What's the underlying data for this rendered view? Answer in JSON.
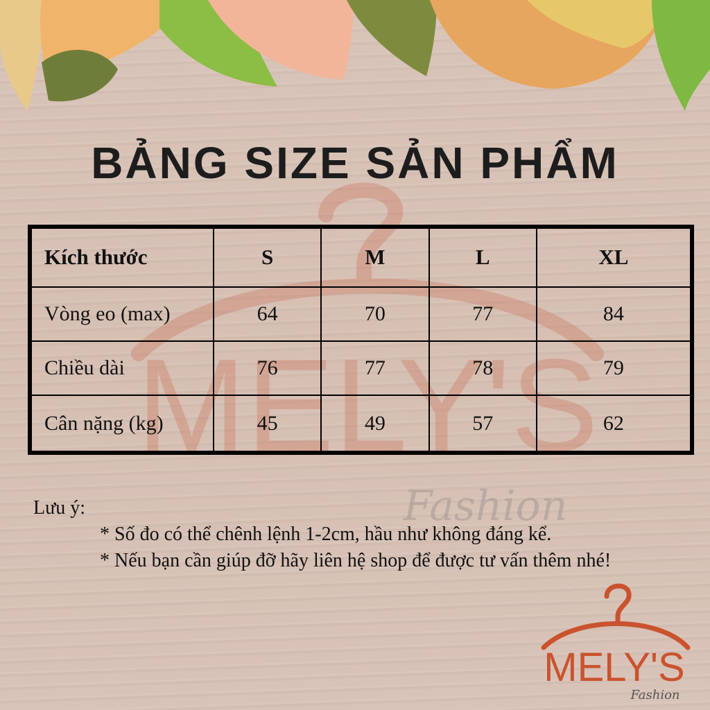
{
  "title": "BẢNG SIZE SẢN PHẨM",
  "table": {
    "headers": [
      "Kích thước",
      "S",
      "M",
      "L",
      "XL"
    ],
    "rows": [
      {
        "label": "Vòng eo (max)",
        "values": [
          "64",
          "70",
          "77",
          "84"
        ]
      },
      {
        "label": "Chiều dài",
        "values": [
          "76",
          "77",
          "78",
          "79"
        ]
      },
      {
        "label": "Cân nặng (kg)",
        "values": [
          "45",
          "49",
          "57",
          "62"
        ]
      }
    ]
  },
  "notes": {
    "label": "Lưu ý:",
    "items": [
      "* Số đo có thể chênh lệnh 1-2cm, hầu như không đáng kể.",
      "* Nếu bạn cần giúp đỡ hãy liên hệ shop để được tư vấn thêm nhé!"
    ]
  },
  "brand": {
    "name": "MELY'S",
    "tagline": "Fashion",
    "color": "#c9532e"
  }
}
